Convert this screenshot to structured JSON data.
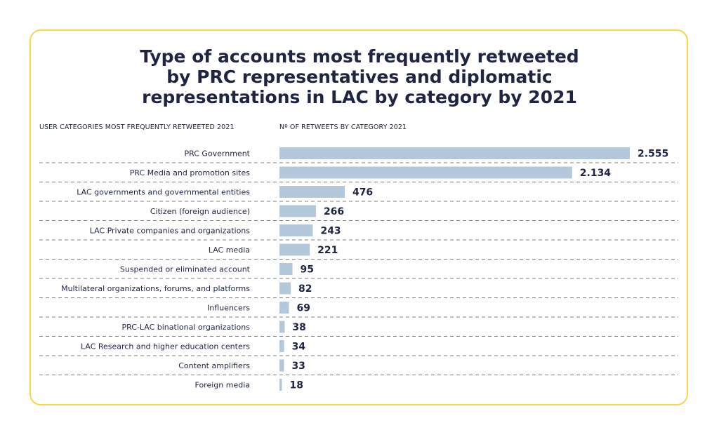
{
  "title": "Type of accounts most frequently retweeted\nby PRC representatives and diplomatic\nrepresentations in LAC by category by 2021",
  "left_header": "USER CATEGORIES MOST FREQUENTLY RETWEETED 2021",
  "right_header": "Nº OF RETWEETS BY CATEGORY 2021",
  "colors": {
    "bar": "#b3c9db",
    "border": "#f5d84a",
    "text": "#1f2540",
    "divider": "#555555"
  },
  "chart_data": {
    "type": "bar",
    "orientation": "horizontal",
    "categories": [
      "PRC Government",
      "PRC Media and promotion sites",
      "LAC governments and governmental entities",
      "Citizen (foreign audience)",
      "LAC Private companies and organizations",
      "LAC media",
      "Suspended or eliminated account",
      "Multilateral organizations, forums, and platforms",
      "Influencers",
      "PRC-LAC binational organizations",
      "LAC Research and higher education centers",
      "Content amplifiers",
      "Foreign media"
    ],
    "values": [
      2555,
      2134,
      476,
      266,
      243,
      221,
      95,
      82,
      69,
      38,
      34,
      33,
      18
    ],
    "value_labels": [
      "2.555",
      "2.134",
      "476",
      "266",
      "243",
      "221",
      "95",
      "82",
      "69",
      "38",
      "34",
      "33",
      "18"
    ],
    "xlim": [
      0,
      2555
    ],
    "grid": false
  }
}
